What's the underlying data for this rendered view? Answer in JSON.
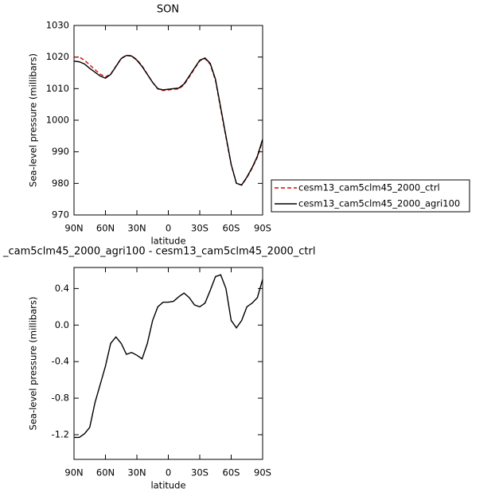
{
  "chart_data": [
    {
      "type": "line",
      "title": "SON",
      "xlabel": "latitude",
      "ylabel": "Sea-level pressure (millibars)",
      "x": [
        90,
        85,
        80,
        75,
        70,
        65,
        60,
        55,
        50,
        45,
        40,
        35,
        30,
        25,
        20,
        15,
        10,
        5,
        0,
        -5,
        -10,
        -15,
        -20,
        -25,
        -30,
        -35,
        -40,
        -45,
        -50,
        -55,
        -60,
        -65,
        -70,
        -75,
        -80,
        -85,
        -90
      ],
      "series": [
        {
          "name": "cesm13_cam5clm45_2000_ctrl",
          "color": "#e00000",
          "dashed": true,
          "values": [
            1020,
            1020,
            1019,
            1017.5,
            1016,
            1014.6,
            1013.7,
            1014.6,
            1017.1,
            1019.6,
            1020.6,
            1020.4,
            1019.2,
            1017.2,
            1014.6,
            1012,
            1009.9,
            1009.4,
            1009.6,
            1009.8,
            1009.9,
            1011.2,
            1013.7,
            1016.3,
            1018.8,
            1019.5,
            1017.7,
            1012.6,
            1003.5,
            994.6,
            985.9,
            980,
            979.4,
            981.8,
            984.8,
            988.3,
            993.5
          ]
        },
        {
          "name": "cesm13_cam5clm45_2000_agri100",
          "color": "#000000",
          "dashed": false,
          "values": [
            1018.7,
            1018.5,
            1017.8,
            1016.4,
            1015.2,
            1014,
            1013.3,
            1014.5,
            1017,
            1019.5,
            1020.5,
            1020.3,
            1019,
            1017,
            1014.5,
            1012,
            1010,
            1009.6,
            1009.8,
            1010,
            1010.2,
            1011.5,
            1014,
            1016.5,
            1019,
            1019.7,
            1018,
            1013,
            1004,
            995,
            986,
            980,
            979.5,
            982,
            985,
            988.6,
            994
          ]
        }
      ],
      "xlim": [
        90,
        -90
      ],
      "xticks": [
        {
          "value": 90,
          "label": "90N"
        },
        {
          "value": 60,
          "label": "60N"
        },
        {
          "value": 30,
          "label": "30N"
        },
        0,
        {
          "value": -30,
          "label": "30S"
        },
        {
          "value": -60,
          "label": "60S"
        },
        {
          "value": -90,
          "label": "90S"
        }
      ],
      "ylim": [
        970,
        1030
      ],
      "yticks": [
        970,
        980,
        990,
        1000,
        1010,
        1020,
        1030
      ],
      "legend": "right"
    },
    {
      "type": "line",
      "title": "_cam5clm45_2000_agri100 - cesm13_cam5clm45_2000_ctrl",
      "xlabel": "latitude",
      "ylabel": "Sea-level pressure (millibars)",
      "x": [
        90,
        85,
        80,
        75,
        70,
        65,
        60,
        55,
        50,
        45,
        40,
        35,
        30,
        25,
        20,
        15,
        10,
        5,
        0,
        -5,
        -10,
        -15,
        -20,
        -25,
        -30,
        -35,
        -40,
        -45,
        -50,
        -55,
        -60,
        -65,
        -70,
        -75,
        -80,
        -85,
        -90
      ],
      "series": [
        {
          "color": "#000000",
          "dashed": false,
          "values": [
            -1.23,
            -1.23,
            -1.19,
            -1.12,
            -0.85,
            -0.65,
            -0.45,
            -0.2,
            -0.13,
            -0.2,
            -0.32,
            -0.3,
            -0.33,
            -0.37,
            -0.2,
            0.05,
            0.2,
            0.25,
            0.25,
            0.26,
            0.31,
            0.35,
            0.3,
            0.22,
            0.2,
            0.24,
            0.38,
            0.53,
            0.55,
            0.4,
            0.05,
            -0.03,
            0.05,
            0.2,
            0.24,
            0.3,
            0.5
          ]
        }
      ],
      "xlim": [
        90,
        -90
      ],
      "xticks": [
        {
          "value": 90,
          "label": "90N"
        },
        {
          "value": 60,
          "label": "60N"
        },
        {
          "value": 30,
          "label": "30N"
        },
        0,
        {
          "value": -30,
          "label": "30S"
        },
        {
          "value": -60,
          "label": "60S"
        },
        {
          "value": -90,
          "label": "90S"
        }
      ],
      "ylim": [
        -1.47,
        0.63
      ],
      "yticks": [
        -1.2,
        -0.8,
        -0.4,
        {
          "value": 0,
          "label": "0.0"
        },
        0.4
      ]
    }
  ]
}
